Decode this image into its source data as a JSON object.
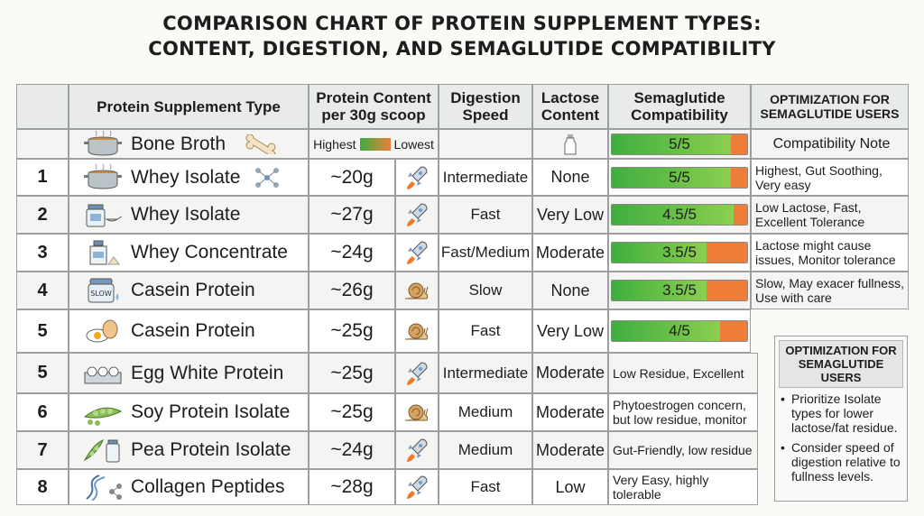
{
  "title_line1": "COMPARISON CHART OF PROTEIN SUPPLEMENT TYPES:",
  "title_line2": "CONTENT, DIGESTION, AND SEMAGLUTIDE COMPATIBILITY",
  "headers": {
    "type": "Protein Supplement Type",
    "content": "Protein Content per 30g scoop",
    "digestion": "Digestion Speed",
    "lactose": "Lactose Content",
    "compat": "Semaglutide Compatibility",
    "opt": "OPTIMIZATION FOR SEMAGLUTIDE USERS"
  },
  "legend": {
    "highest": "Highest",
    "lowest": "Lowest"
  },
  "note_header": "Compatibility Note",
  "chart_data": {
    "type": "table",
    "rows": [
      {
        "num": "",
        "name": "Bone Broth",
        "icon": "bone-broth-pot-icon",
        "content": "",
        "speed_icon": "",
        "speed": "",
        "lactose": "milk-bottle-icon",
        "score": 5,
        "score_label": "5/5",
        "note": "Compatibility Note"
      },
      {
        "num": "1",
        "name": "Whey Isolate",
        "icon": "soup-pot-icon",
        "content": "~20g",
        "speed_icon": "rocket-icon",
        "speed": "Intermediate",
        "lactose": "None",
        "score": 5,
        "score_label": "5/5",
        "note": "Highest, Gut Soothing, Very easy"
      },
      {
        "num": "2",
        "name": "Whey Isolate",
        "icon": "jar-scoop-icon",
        "content": "~27g",
        "speed_icon": "rocket-icon",
        "speed": "Fast",
        "lactose": "Very Low",
        "score": 4.5,
        "score_label": "4.5/5",
        "note": "Low Lactose, Fast, Excellent Tolerance"
      },
      {
        "num": "3",
        "name": "Whey Concentrate",
        "icon": "jug-icon",
        "content": "~24g",
        "speed_icon": "rocket-icon",
        "speed": "Fast/Medium",
        "lactose": "Moderate",
        "score": 3.5,
        "score_label": "3.5/5",
        "note": "Lactose might cause issues, Monitor tolerance"
      },
      {
        "num": "4",
        "name": "Casein Protein",
        "icon": "slow-jar-icon",
        "content": "~26g",
        "speed_icon": "snail-icon",
        "speed": "Slow",
        "lactose": "None",
        "score": 3.5,
        "score_label": "3.5/5",
        "note": "Slow, May exacer fullness, Use with care"
      },
      {
        "num": "5",
        "name": "Casein Protein",
        "icon": "egg-icon",
        "content": "~25g",
        "speed_icon": "snail-icon",
        "speed": "Fast",
        "lactose": "Very Low",
        "score": 4,
        "score_label": "4/5",
        "note": ""
      },
      {
        "num": "5",
        "name": "Egg White Protein",
        "icon": "egg-carton-icon",
        "content": "~25g",
        "speed_icon": "rocket-icon",
        "speed": "Intermediate",
        "lactose": "Moderate",
        "score": null,
        "score_label": "",
        "note": "Low Residue, Excellent"
      },
      {
        "num": "6",
        "name": "Soy Protein Isolate",
        "icon": "soybean-pod-icon",
        "content": "~25g",
        "speed_icon": "snail-icon",
        "speed": "Medium",
        "lactose": "Moderate",
        "score": null,
        "score_label": "",
        "note": "Phytoestrogen concern, but low residue, monitor"
      },
      {
        "num": "7",
        "name": "Pea Protein Isolate",
        "icon": "pea-pod-jar-icon",
        "content": "~24g",
        "speed_icon": "rocket-icon",
        "speed": "Medium",
        "lactose": "Moderate",
        "score": null,
        "score_label": "",
        "note": "Gut-Friendly, low residue"
      },
      {
        "num": "8",
        "name": "Collagen Peptides",
        "icon": "dna-icon",
        "content": "~28g",
        "speed_icon": "rocket-icon",
        "speed": "Fast",
        "lactose": "Low",
        "score": null,
        "score_label": "",
        "note": "Very Easy, highly tolerable"
      }
    ]
  },
  "optimization": {
    "title": "OPTIMIZATION FOR SEMAGLUTIDE USERS",
    "bullets": [
      "Prioritize Isolate types for lower lactose/fat residue.",
      "Consider speed of digestion relative to fullness levels."
    ]
  }
}
